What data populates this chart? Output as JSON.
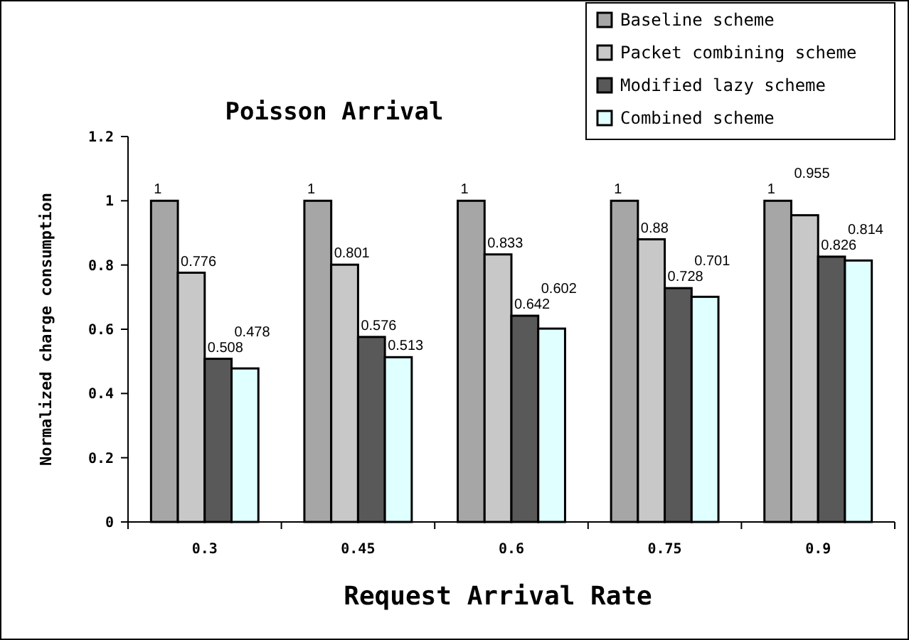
{
  "chart_data": {
    "type": "bar",
    "title": "Poisson Arrival",
    "xlabel": "Request Arrival Rate",
    "ylabel": "Normalized charge consumption",
    "categories": [
      "0.3",
      "0.45",
      "0.6",
      "0.75",
      "0.9"
    ],
    "series": [
      {
        "name": "Baseline scheme",
        "color": "#a6a6a6",
        "values": [
          1,
          1,
          1,
          1,
          1
        ]
      },
      {
        "name": "Packet combining scheme",
        "color": "#c8c8c8",
        "values": [
          0.776,
          0.801,
          0.833,
          0.88,
          0.955
        ]
      },
      {
        "name": "Modified lazy scheme",
        "color": "#595959",
        "values": [
          0.508,
          0.576,
          0.642,
          0.728,
          0.826
        ]
      },
      {
        "name": "Combined scheme",
        "color": "#e0ffff",
        "values": [
          0.478,
          0.513,
          0.602,
          0.701,
          0.814
        ]
      }
    ],
    "ylim": [
      0,
      1.2
    ],
    "yticks": [
      0,
      0.2,
      0.4,
      0.6,
      0.8,
      1,
      1.2
    ],
    "data_labels": true,
    "legend": "top right",
    "grid": false
  }
}
